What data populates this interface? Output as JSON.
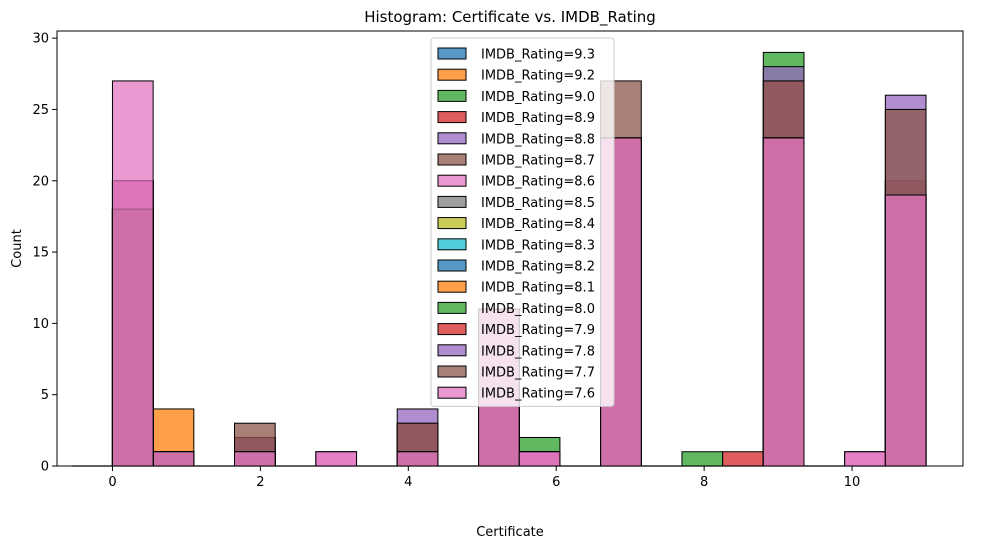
{
  "chart_data": {
    "type": "bar",
    "title": "Histogram: Certificate vs. IMDB_Rating",
    "xlabel": "Certificate",
    "ylabel": "Count",
    "xlim": [
      -0.75,
      11.5
    ],
    "ylim": [
      0,
      30.5
    ],
    "xticks": [
      0,
      2,
      4,
      6,
      8,
      10
    ],
    "yticks": [
      0,
      5,
      10,
      15,
      20,
      25,
      30
    ],
    "legend_position": "top-center",
    "bin_width": 0.55,
    "bins": [
      0,
      0.55,
      1.1,
      1.65,
      2.2,
      2.75,
      3.3,
      3.85,
      4.4,
      4.95,
      5.5,
      6.05,
      6.6,
      7.15,
      7.7,
      8.25,
      8.8,
      9.35,
      9.9,
      10.45
    ],
    "series": [
      {
        "name": "IMDB_Rating=9.3",
        "color": "#1f77b4",
        "values": [
          18,
          0,
          0,
          1,
          0,
          0,
          0,
          1,
          0,
          11,
          0,
          0,
          23,
          0,
          0,
          0,
          23,
          0,
          0,
          19
        ]
      },
      {
        "name": "IMDB_Rating=9.2",
        "color": "#ff7f0e",
        "values": [
          18,
          4,
          0,
          1,
          0,
          0,
          0,
          1,
          0,
          11,
          1,
          0,
          23,
          0,
          0,
          0,
          23,
          0,
          0,
          19
        ]
      },
      {
        "name": "IMDB_Rating=9.0",
        "color": "#2ca02c",
        "values": [
          20,
          1,
          0,
          2,
          0,
          0,
          0,
          3,
          0,
          11,
          2,
          0,
          23,
          0,
          1,
          0,
          29,
          0,
          0,
          20
        ]
      },
      {
        "name": "IMDB_Rating=8.9",
        "color": "#d62728",
        "values": [
          20,
          1,
          0,
          2,
          0,
          0,
          0,
          3,
          0,
          11,
          1,
          0,
          23,
          0,
          0,
          1,
          27,
          0,
          0,
          20
        ]
      },
      {
        "name": "IMDB_Rating=8.8",
        "color": "#9467bd",
        "values": [
          20,
          1,
          0,
          2,
          0,
          0,
          0,
          4,
          0,
          11,
          1,
          0,
          23,
          0,
          0,
          0,
          28,
          0,
          0,
          26
        ]
      },
      {
        "name": "IMDB_Rating=8.7",
        "color": "#8c564b",
        "values": [
          20,
          1,
          0,
          3,
          0,
          0,
          0,
          3,
          0,
          11,
          1,
          0,
          27,
          0,
          0,
          0,
          27,
          0,
          0,
          25
        ]
      },
      {
        "name": "IMDB_Rating=8.6",
        "color": "#e377c2",
        "values": [
          20,
          1,
          0,
          1,
          0,
          1,
          0,
          1,
          0,
          11,
          1,
          0,
          23,
          0,
          0,
          0,
          23,
          0,
          1,
          19
        ]
      },
      {
        "name": "IMDB_Rating=8.5",
        "color": "#7f7f7f",
        "values": [
          18,
          0,
          0,
          1,
          0,
          0,
          0,
          1,
          0,
          11,
          0,
          0,
          23,
          0,
          0,
          0,
          23,
          0,
          0,
          19
        ]
      },
      {
        "name": "IMDB_Rating=8.4",
        "color": "#bcbd22",
        "values": [
          18,
          0,
          0,
          1,
          0,
          0,
          0,
          1,
          0,
          11,
          0,
          0,
          23,
          0,
          0,
          0,
          23,
          0,
          0,
          19
        ]
      },
      {
        "name": "IMDB_Rating=8.3",
        "color": "#17becf",
        "values": [
          18,
          0,
          0,
          1,
          0,
          0,
          0,
          1,
          0,
          11,
          0,
          0,
          23,
          0,
          0,
          0,
          23,
          0,
          0,
          19
        ]
      },
      {
        "name": "IMDB_Rating=8.2",
        "color": "#1f77b4",
        "values": [
          18,
          0,
          0,
          1,
          0,
          0,
          0,
          1,
          0,
          11,
          0,
          0,
          23,
          0,
          0,
          0,
          23,
          0,
          0,
          19
        ]
      },
      {
        "name": "IMDB_Rating=8.1",
        "color": "#ff7f0e",
        "values": [
          18,
          0,
          0,
          1,
          0,
          0,
          0,
          1,
          0,
          11,
          0,
          0,
          23,
          0,
          0,
          0,
          23,
          0,
          0,
          19
        ]
      },
      {
        "name": "IMDB_Rating=8.0",
        "color": "#2ca02c",
        "values": [
          18,
          0,
          0,
          1,
          0,
          0,
          0,
          1,
          0,
          11,
          0,
          0,
          23,
          0,
          0,
          0,
          23,
          0,
          0,
          19
        ]
      },
      {
        "name": "IMDB_Rating=7.9",
        "color": "#d62728",
        "values": [
          18,
          0,
          0,
          1,
          0,
          0,
          0,
          1,
          0,
          11,
          0,
          0,
          23,
          0,
          0,
          0,
          23,
          0,
          0,
          19
        ]
      },
      {
        "name": "IMDB_Rating=7.8",
        "color": "#9467bd",
        "values": [
          18,
          0,
          0,
          1,
          0,
          0,
          0,
          1,
          0,
          11,
          0,
          0,
          23,
          0,
          0,
          0,
          23,
          0,
          0,
          19
        ]
      },
      {
        "name": "IMDB_Rating=7.7",
        "color": "#8c564b",
        "values": [
          18,
          0,
          0,
          1,
          0,
          0,
          0,
          1,
          0,
          11,
          0,
          0,
          23,
          0,
          0,
          0,
          23,
          0,
          0,
          19
        ]
      },
      {
        "name": "IMDB_Rating=7.6",
        "color": "#e377c2",
        "values": [
          27,
          0,
          0,
          1,
          0,
          1,
          0,
          1,
          0,
          11,
          1,
          0,
          23,
          0,
          0,
          0,
          23,
          0,
          1,
          19
        ]
      }
    ]
  }
}
